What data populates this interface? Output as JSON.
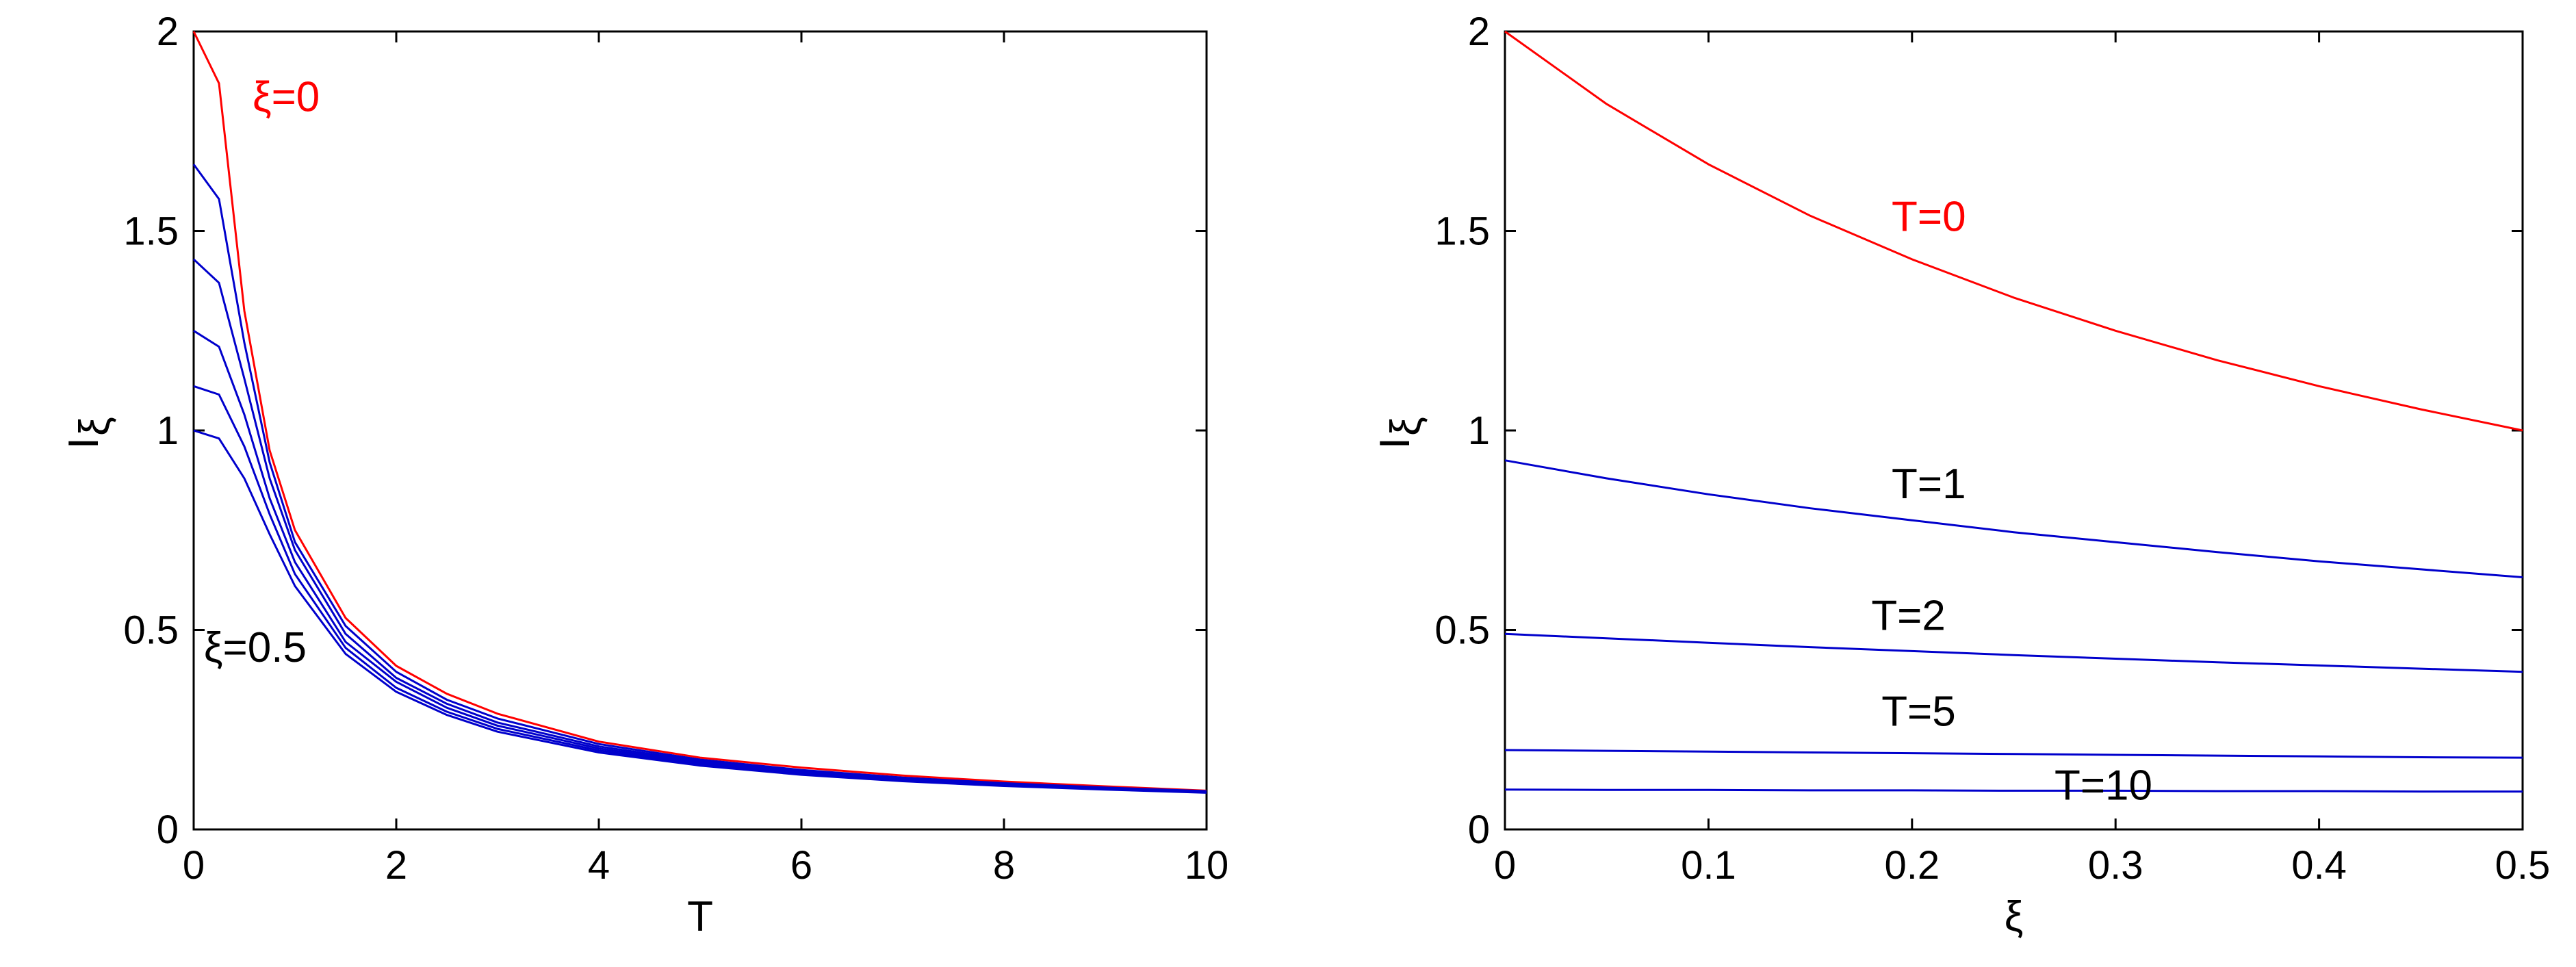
{
  "chart_data": [
    {
      "type": "line",
      "xlabel": "T",
      "ylabel": {
        "main": "I",
        "sub": "ξ"
      },
      "xlim": [
        0,
        10
      ],
      "ylim": [
        0,
        2
      ],
      "xticks": [
        "0",
        "2",
        "4",
        "6",
        "8",
        "10"
      ],
      "yticks": [
        "0",
        "0.5",
        "1",
        "1.5",
        "2"
      ],
      "grid": false,
      "x": [
        0,
        0.25,
        0.5,
        0.75,
        1,
        1.5,
        2,
        2.5,
        3,
        4,
        5,
        6,
        7,
        8,
        9,
        10
      ],
      "series": [
        {
          "color": "#ff0000",
          "values": [
            2.0,
            1.87,
            1.3,
            0.95,
            0.75,
            0.53,
            0.41,
            0.34,
            0.29,
            0.22,
            0.18,
            0.155,
            0.135,
            0.12,
            0.108,
            0.097
          ]
        },
        {
          "color": "#0000cc",
          "values": [
            1.667,
            1.58,
            1.22,
            0.92,
            0.72,
            0.51,
            0.395,
            0.325,
            0.278,
            0.214,
            0.175,
            0.149,
            0.13,
            0.116,
            0.105,
            0.096
          ]
        },
        {
          "color": "#0000cc",
          "values": [
            1.429,
            1.37,
            1.13,
            0.88,
            0.7,
            0.49,
            0.38,
            0.315,
            0.268,
            0.208,
            0.171,
            0.146,
            0.128,
            0.114,
            0.104,
            0.095
          ]
        },
        {
          "color": "#0000cc",
          "values": [
            1.25,
            1.21,
            1.04,
            0.83,
            0.67,
            0.47,
            0.37,
            0.305,
            0.26,
            0.203,
            0.167,
            0.143,
            0.126,
            0.113,
            0.103,
            0.094
          ]
        },
        {
          "color": "#0000cc",
          "values": [
            1.111,
            1.09,
            0.96,
            0.79,
            0.64,
            0.455,
            0.355,
            0.295,
            0.252,
            0.198,
            0.163,
            0.14,
            0.124,
            0.111,
            0.102,
            0.093
          ]
        },
        {
          "color": "#0000cc",
          "values": [
            1.0,
            0.98,
            0.88,
            0.74,
            0.61,
            0.44,
            0.345,
            0.287,
            0.245,
            0.193,
            0.16,
            0.137,
            0.121,
            0.109,
            0.1,
            0.092
          ]
        }
      ],
      "annotations": [
        {
          "text": "ξ=0",
          "color": "#ff0000",
          "x": 0.58,
          "y": 1.8
        },
        {
          "text": "ξ=0.5",
          "color": "#000000",
          "x": 0.1,
          "y": 0.42
        }
      ]
    },
    {
      "type": "line",
      "xlabel": "ξ",
      "ylabel": {
        "main": "I",
        "sub": "ξ"
      },
      "xlim": [
        0,
        0.5
      ],
      "ylim": [
        0,
        2
      ],
      "xticks": [
        "0",
        "0.1",
        "0.2",
        "0.3",
        "0.4",
        "0.5"
      ],
      "yticks": [
        "0",
        "0.5",
        "1",
        "1.5",
        "2"
      ],
      "grid": false,
      "x": [
        0,
        0.05,
        0.1,
        0.15,
        0.2,
        0.25,
        0.3,
        0.35,
        0.4,
        0.45,
        0.5
      ],
      "series": [
        {
          "color": "#ff0000",
          "values": [
            2.0,
            1.818,
            1.667,
            1.538,
            1.429,
            1.333,
            1.25,
            1.176,
            1.111,
            1.053,
            1.0
          ]
        },
        {
          "color": "#0000cc",
          "values": [
            0.925,
            0.88,
            0.84,
            0.805,
            0.775,
            0.745,
            0.72,
            0.695,
            0.672,
            0.652,
            0.632
          ]
        },
        {
          "color": "#0000cc",
          "values": [
            0.49,
            0.479,
            0.468,
            0.457,
            0.447,
            0.437,
            0.428,
            0.419,
            0.411,
            0.403,
            0.395
          ]
        },
        {
          "color": "#0000cc",
          "values": [
            0.199,
            0.197,
            0.195,
            0.193,
            0.191,
            0.189,
            0.187,
            0.185,
            0.183,
            0.181,
            0.18
          ]
        },
        {
          "color": "#0000cc",
          "values": [
            0.1,
            0.099,
            0.099,
            0.098,
            0.098,
            0.097,
            0.097,
            0.096,
            0.096,
            0.095,
            0.095
          ]
        }
      ],
      "annotations": [
        {
          "text": "T=0",
          "color": "#ff0000",
          "x": 0.19,
          "y": 1.5
        },
        {
          "text": "T=1",
          "color": "#000000",
          "x": 0.19,
          "y": 0.83
        },
        {
          "text": "T=2",
          "color": "#000000",
          "x": 0.18,
          "y": 0.5
        },
        {
          "text": "T=5",
          "color": "#000000",
          "x": 0.185,
          "y": 0.26
        },
        {
          "text": "T=10",
          "color": "#000000",
          "x": 0.27,
          "y": 0.075
        }
      ]
    }
  ]
}
